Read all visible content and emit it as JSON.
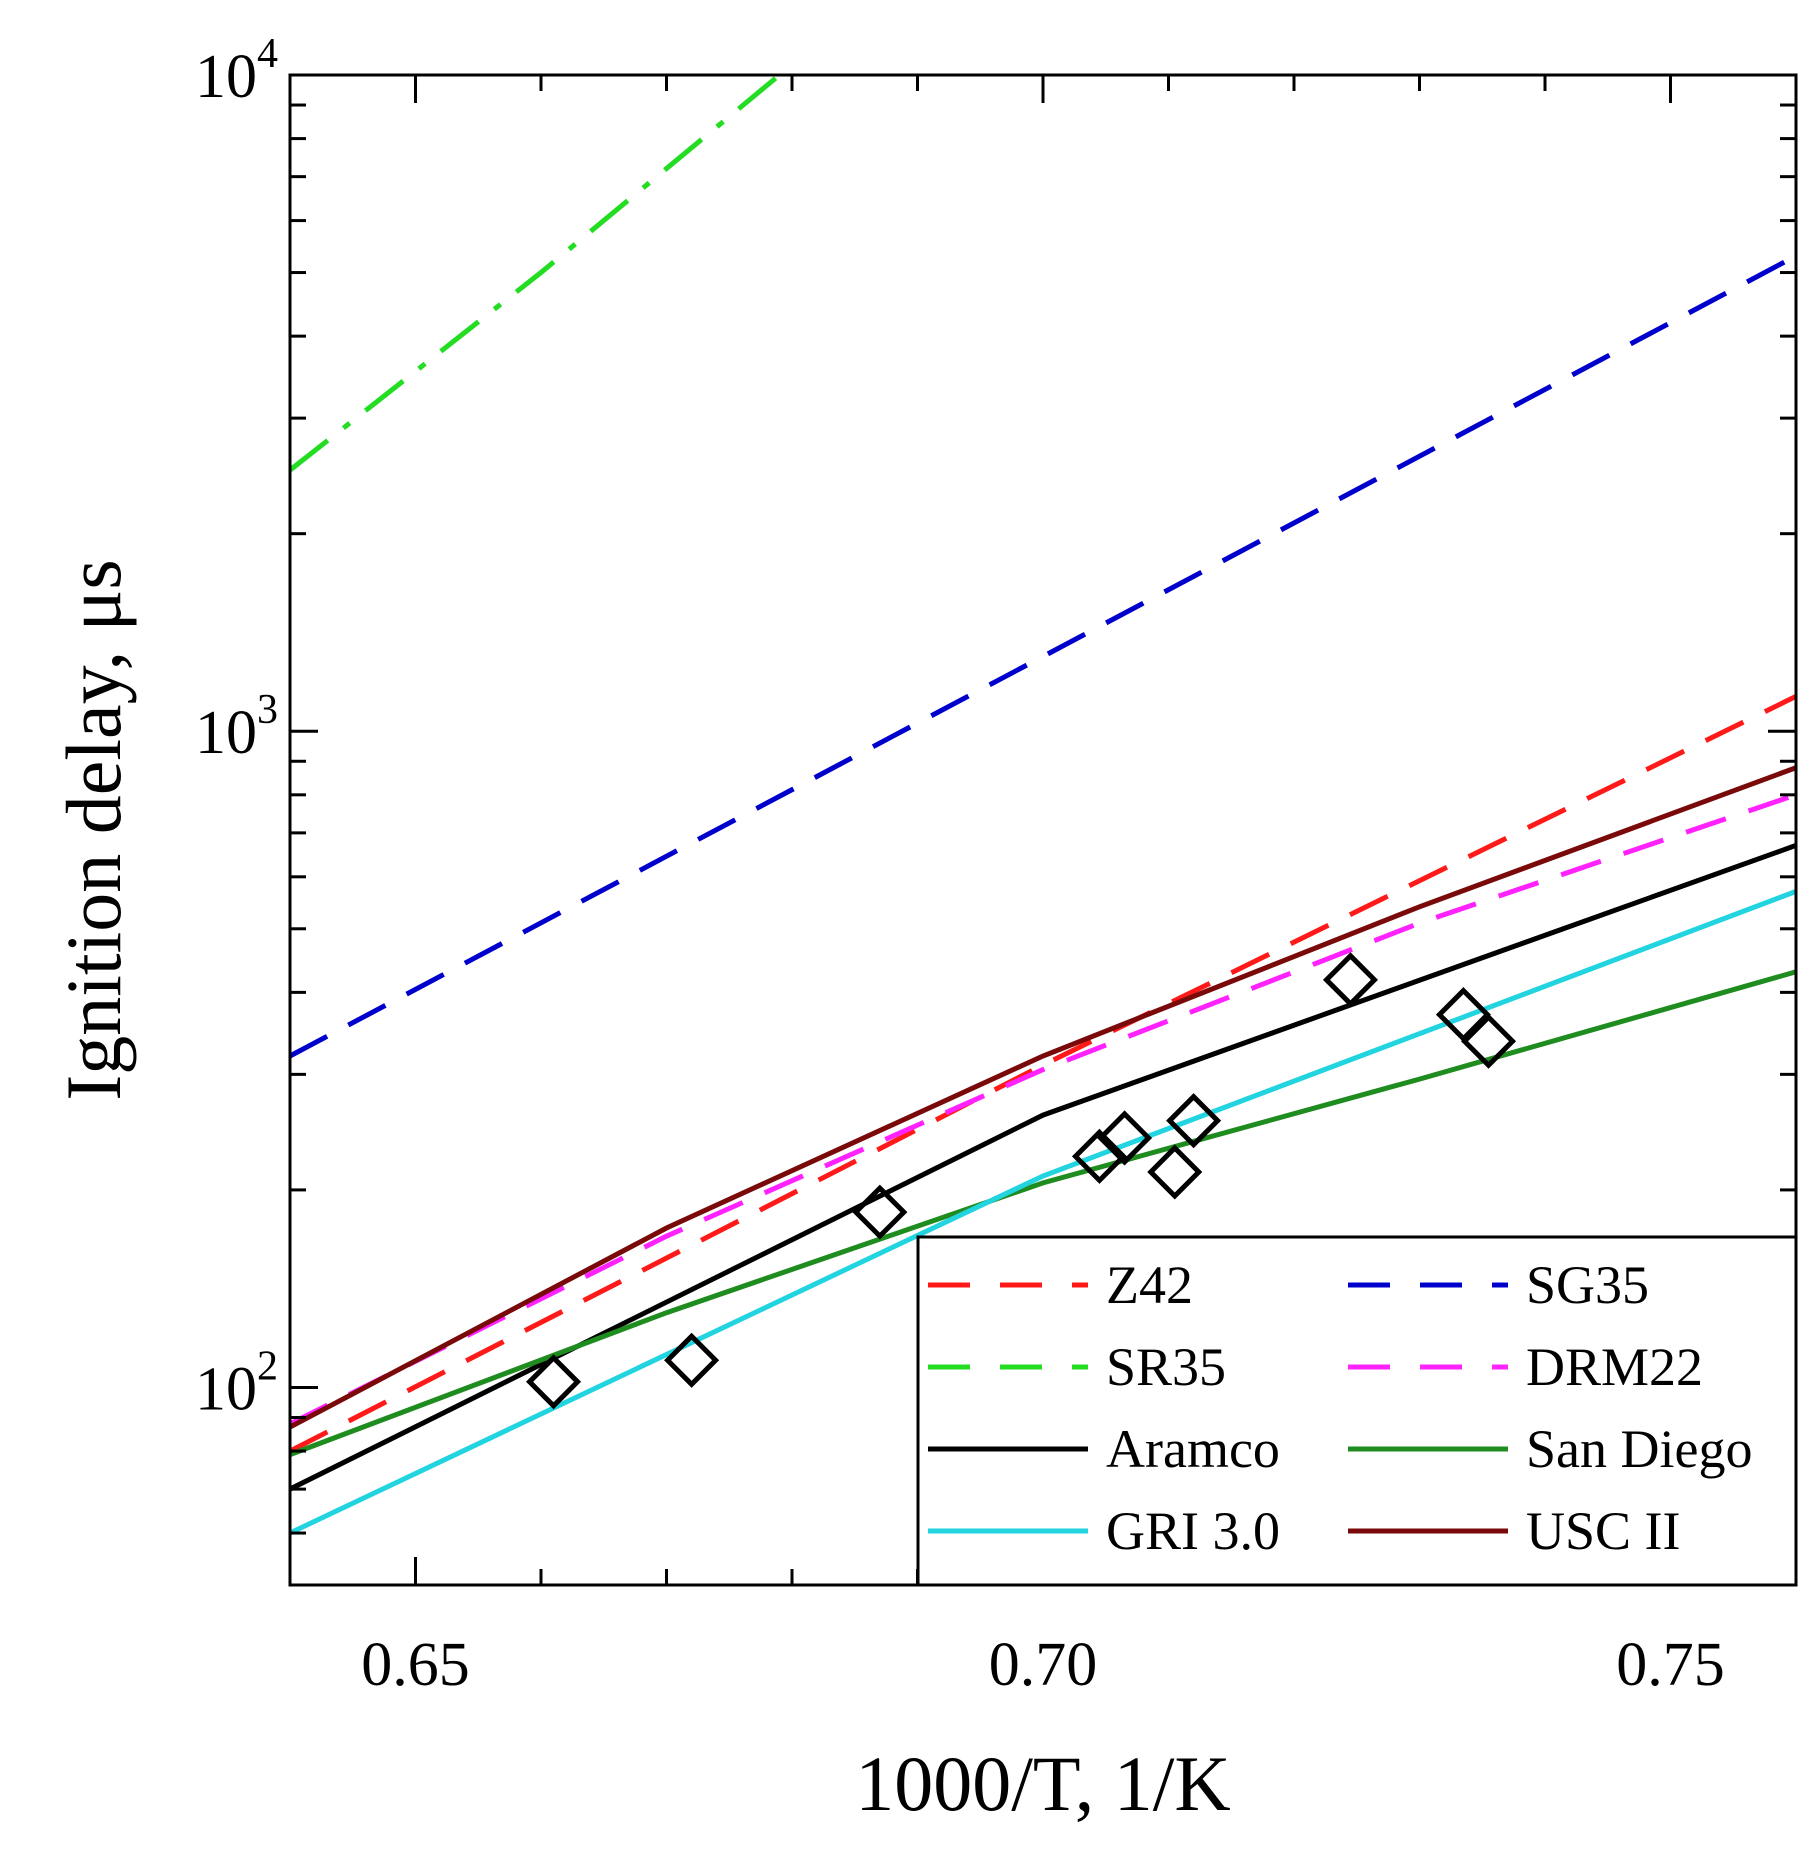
{
  "chart_data": {
    "type": "line",
    "title": "",
    "xlabel": "1000/T, 1/K",
    "ylabel": "Ignition delay, μs",
    "xlim": [
      0.64,
      0.76
    ],
    "ylim": [
      50,
      10000
    ],
    "yscale": "log",
    "grid": false,
    "legend_position": "bottom-right",
    "x_ticks": [
      {
        "value": 0.65,
        "label": "0.65"
      },
      {
        "value": 0.7,
        "label": "0.70"
      },
      {
        "value": 0.75,
        "label": "0.75"
      }
    ],
    "y_ticks": [
      {
        "value": 100,
        "base": "10",
        "exp": "2"
      },
      {
        "value": 1000,
        "base": "10",
        "exp": "3"
      },
      {
        "value": 10000,
        "base": "10",
        "exp": "4"
      }
    ],
    "series": [
      {
        "name": "Z42",
        "color": "#ff1a1a",
        "style": "dashed",
        "x": [
          0.64,
          0.7,
          0.76
        ],
        "y": [
          80,
          310,
          1130
        ]
      },
      {
        "name": "SG35",
        "color": "#0000cc",
        "style": "dashed",
        "x": [
          0.64,
          0.7,
          0.76
        ],
        "y": [
          320,
          1300,
          5300
        ]
      },
      {
        "name": "SR35",
        "color": "#22dd22",
        "style": "dashdot",
        "x": [
          0.64,
          0.66,
          0.679
        ],
        "y": [
          2500,
          5000,
          10000
        ]
      },
      {
        "name": "DRM22",
        "color": "#ff22ff",
        "style": "dashed",
        "x": [
          0.64,
          0.67,
          0.7,
          0.73,
          0.76
        ],
        "y": [
          88,
          170,
          305,
          510,
          800
        ]
      },
      {
        "name": "Aramco",
        "color": "#000000",
        "style": "solid",
        "x": [
          0.64,
          0.7,
          0.76
        ],
        "y": [
          70,
          260,
          670
        ]
      },
      {
        "name": "San Diego",
        "color": "#1e8c1e",
        "style": "solid",
        "x": [
          0.64,
          0.67,
          0.7,
          0.73,
          0.76
        ],
        "y": [
          79,
          130,
          205,
          295,
          430
        ]
      },
      {
        "name": "GRI 3.0",
        "color": "#22d3e0",
        "style": "solid",
        "x": [
          0.64,
          0.7,
          0.76
        ],
        "y": [
          60,
          210,
          570
        ]
      },
      {
        "name": "USC II",
        "color": "#7a0a0a",
        "style": "solid",
        "x": [
          0.64,
          0.67,
          0.7,
          0.73,
          0.76
        ],
        "y": [
          87,
          175,
          320,
          540,
          880
        ]
      }
    ],
    "experimental_points": {
      "marker": "open-diamond",
      "x": [
        0.661,
        0.672,
        0.687,
        0.7045,
        0.7065,
        0.7105,
        0.712,
        0.7245,
        0.7335,
        0.7355
      ],
      "y": [
        102,
        110,
        185,
        225,
        240,
        213,
        255,
        418,
        370,
        337
      ]
    }
  }
}
